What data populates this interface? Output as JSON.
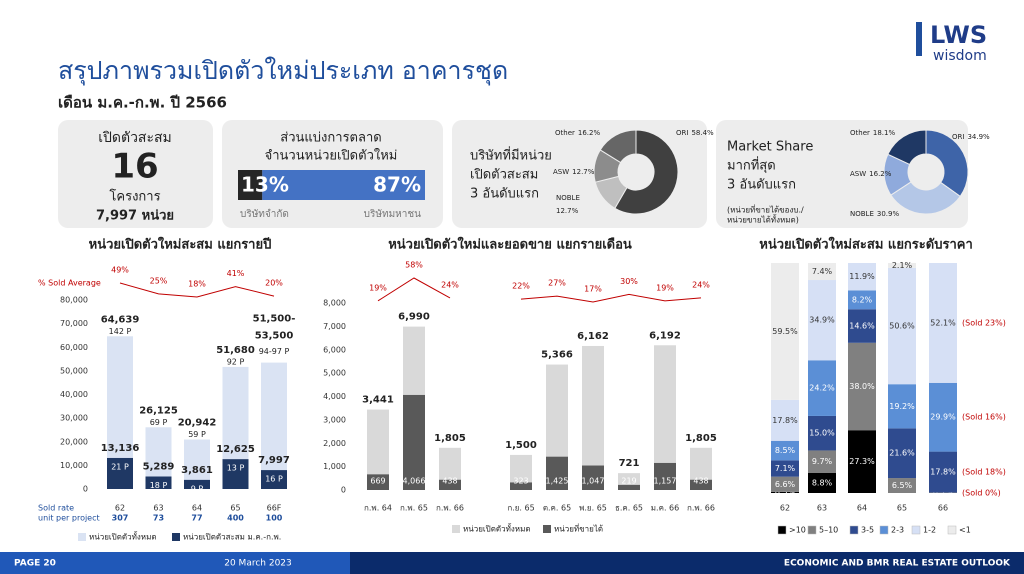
{
  "header": {
    "title": "สรุปภาพรวมเปิดตัวใหม่ประเภท อาคารชุด",
    "subtitle": "เดือน ม.ค.-ก.พ. ปี 2566"
  },
  "logo": {
    "name": "LWS",
    "tagline": "wisdom"
  },
  "summary_card": {
    "label": "เปิดตัวสะสม",
    "projects": 16,
    "projects_unit": "โครงการ",
    "units": "7,997 หน่วย"
  },
  "chart_data": [
    {
      "type": "share-bar",
      "title": "ส่วนแบ่งการตลาด",
      "subtitle": "จำนวนหน่วยเปิดตัวใหม่",
      "categories": [
        "บริษัทจำกัด",
        "บริษัทมหาชน"
      ],
      "values": [
        13,
        87
      ],
      "value_labels": [
        "13%",
        "87%"
      ],
      "colors": [
        "#262626",
        "#4472c4"
      ]
    },
    {
      "type": "donut",
      "title_lines": [
        "บริษัทที่มีหน่วย",
        "เปิดตัวสะสม",
        "3 อันดับแรก"
      ],
      "categories": [
        "ORI",
        "NOBLE",
        "ASW",
        "Other"
      ],
      "values": [
        58.4,
        12.7,
        12.7,
        16.2
      ],
      "value_labels": [
        "58.4%",
        "12.7%",
        "12.7%",
        "16.2%"
      ],
      "colors": [
        "#404040",
        "#bfbfbf",
        "#8c8c8c",
        "#666666"
      ]
    },
    {
      "type": "donut",
      "title_lines": [
        "Market Share",
        "มากที่สุด",
        "3 อันดับแรก"
      ],
      "note_lines": [
        "(หน่วยที่ขายได้ของบ./",
        "หน่วยขายได้ทั้งหมด)"
      ],
      "categories": [
        "ORI",
        "NOBLE",
        "ASW",
        "Other"
      ],
      "values": [
        34.9,
        30.9,
        16.2,
        18.1
      ],
      "value_labels": [
        "34.9%",
        "30.9%",
        "16.2%",
        "18.1%"
      ],
      "colors": [
        "#3e64a8",
        "#b4c7e7",
        "#8faadc",
        "#1f3864"
      ]
    },
    {
      "type": "bar-overlay",
      "title": "หน่วยเปิดตัวใหม่สะสม แยกรายปี",
      "categories": [
        "62",
        "63",
        "64",
        "65",
        "66F"
      ],
      "series": [
        {
          "name": "หน่วยเปิดตัวทั้งหมด",
          "color": "#dae3f3",
          "values": [
            64639,
            26125,
            20942,
            51680,
            53500
          ],
          "value_labels": [
            "64,639",
            "26,125",
            "20,942",
            "51,680",
            "51,500-53,500"
          ],
          "projects": [
            "142 P",
            "69 P",
            "59 P",
            "92 P",
            "94-97 P"
          ]
        },
        {
          "name": "หน่วยเปิดตัวสะสม ม.ค.-ก.พ.",
          "color": "#1f3864",
          "values": [
            13136,
            5289,
            3861,
            12625,
            7997
          ],
          "value_labels": [
            "13,136",
            "5,289",
            "3,861",
            "12,625",
            "7,997"
          ],
          "projects": [
            "21 P",
            "18 P",
            "9 P",
            "13 P",
            "16 P"
          ]
        }
      ],
      "line": {
        "name": "% Sold Average",
        "color": "#c00000",
        "values": [
          49,
          25,
          18,
          41,
          20
        ],
        "value_labels": [
          "49%",
          "25%",
          "18%",
          "41%",
          "20%"
        ]
      },
      "sold_rate_label": "Sold rate",
      "unit_label": "unit per project",
      "units_per_project": [
        307,
        73,
        77,
        400,
        100
      ],
      "ylim": [
        0,
        80000
      ],
      "yticks": [
        0,
        {
          "value": 10000,
          "label": "10,000"
        },
        {
          "value": 20000,
          "label": "20,000"
        },
        {
          "value": 30000,
          "label": "30,000"
        },
        {
          "value": 40000,
          "label": "40,000"
        },
        {
          "value": 50000,
          "label": "50,000"
        },
        {
          "value": 60000,
          "label": "60,000"
        },
        {
          "value": 70000,
          "label": "70,000"
        },
        {
          "value": 80000,
          "label": "80,000"
        }
      ]
    },
    {
      "type": "bar-overlay",
      "title": "หน่วยเปิดตัวใหม่และยอดขาย แยกรายเดือน",
      "categories": [
        "ก.พ. 64",
        "ก.พ. 65",
        "ก.พ. 66",
        "ก.ย. 65",
        "ต.ค. 65",
        "พ.ย. 65",
        "ธ.ค. 65",
        "ม.ค. 66",
        "ก.พ. 66"
      ],
      "series": [
        {
          "name": "หน่วยเปิดตัวทั้งหมด",
          "color": "#d9d9d9",
          "values": [
            3441,
            6990,
            1805,
            1500,
            5366,
            6162,
            721,
            6192,
            1805
          ],
          "value_labels": [
            "3,441",
            "6,990",
            "1,805",
            "1,500",
            "5,366",
            "6,162",
            "721",
            "6,192",
            "1,805"
          ]
        },
        {
          "name": "หน่วยที่ขายได้",
          "color": "#595959",
          "values": [
            669,
            4066,
            438,
            323,
            1425,
            1047,
            219,
            1157,
            438
          ],
          "value_labels": [
            "669",
            "4,066",
            "438",
            "323",
            "1,425",
            "1,047",
            "219",
            "1,157",
            "438"
          ]
        }
      ],
      "line": {
        "color": "#c00000",
        "values": [
          19,
          58,
          24,
          22,
          27,
          17,
          30,
          19,
          24
        ],
        "value_labels": [
          "19%",
          "58%",
          "24%",
          "22%",
          "27%",
          "17%",
          "30%",
          "19%",
          "24%"
        ]
      },
      "ylim": [
        0,
        8000
      ],
      "yticks": [
        0,
        {
          "value": 1000,
          "label": "1,000"
        },
        {
          "value": 2000,
          "label": "2,000"
        },
        {
          "value": 3000,
          "label": "3,000"
        },
        {
          "value": 4000,
          "label": "4,000"
        },
        {
          "value": 5000,
          "label": "5,000"
        },
        {
          "value": 6000,
          "label": "6,000"
        },
        {
          "value": 7000,
          "label": "7,000"
        },
        {
          "value": 8000,
          "label": "8,000"
        }
      ]
    },
    {
      "type": "stacked-bar-100",
      "title": "หน่วยเปิดตัวใหม่สะสม แยกระดับราคา",
      "categories": [
        "62",
        "63",
        "64",
        "65",
        "66"
      ],
      "series": [
        {
          "name": ">10",
          "color": "#000000",
          "values": [
            0.5,
            8.8,
            27.3,
            0,
            0
          ],
          "value_labels": [
            "0.5%",
            "8.8%",
            "27.3%",
            null,
            null
          ]
        },
        {
          "name": "5–10",
          "color": "#808080",
          "values": [
            6.6,
            9.7,
            38.0,
            6.5,
            0.2
          ],
          "value_labels": [
            "6.6%",
            "9.7%",
            "38.0%",
            "6.5%",
            "0.2%"
          ],
          "sold_label": "(Sold 0%)"
        },
        {
          "name": "3-5",
          "color": "#2f4b8f",
          "values": [
            7.1,
            15.0,
            14.6,
            21.6,
            17.8
          ],
          "value_labels": [
            "7.1%",
            "15.0%",
            "14.6%",
            "21.6%",
            "17.8%"
          ],
          "sold_label": "(Sold 18%)"
        },
        {
          "name": "2-3",
          "color": "#5b8fd6",
          "values": [
            8.5,
            24.2,
            8.2,
            19.2,
            29.9
          ],
          "value_labels": [
            "8.5%",
            "24.2%",
            "8.2%",
            "19.2%",
            "29.9%"
          ],
          "sold_label": "(Sold 16%)"
        },
        {
          "name": "1-2",
          "color": "#d6e0f5",
          "values": [
            17.8,
            34.9,
            11.9,
            50.6,
            52.1
          ],
          "value_labels": [
            "17.8%",
            "34.9%",
            "11.9%",
            "50.6%",
            "52.1%"
          ],
          "sold_label": "(Sold 23%)"
        },
        {
          "name": "<1",
          "color": "#ececec",
          "values": [
            59.5,
            7.4,
            0,
            2.1,
            0
          ],
          "value_labels": [
            "59.5%",
            "7.4%",
            null,
            "2.1%",
            null
          ]
        }
      ]
    }
  ],
  "footer": {
    "page": "PAGE 20",
    "date": "20 March 2023",
    "report": "ECONOMIC AND BMR REAL ESTATE OUTLOOK"
  }
}
